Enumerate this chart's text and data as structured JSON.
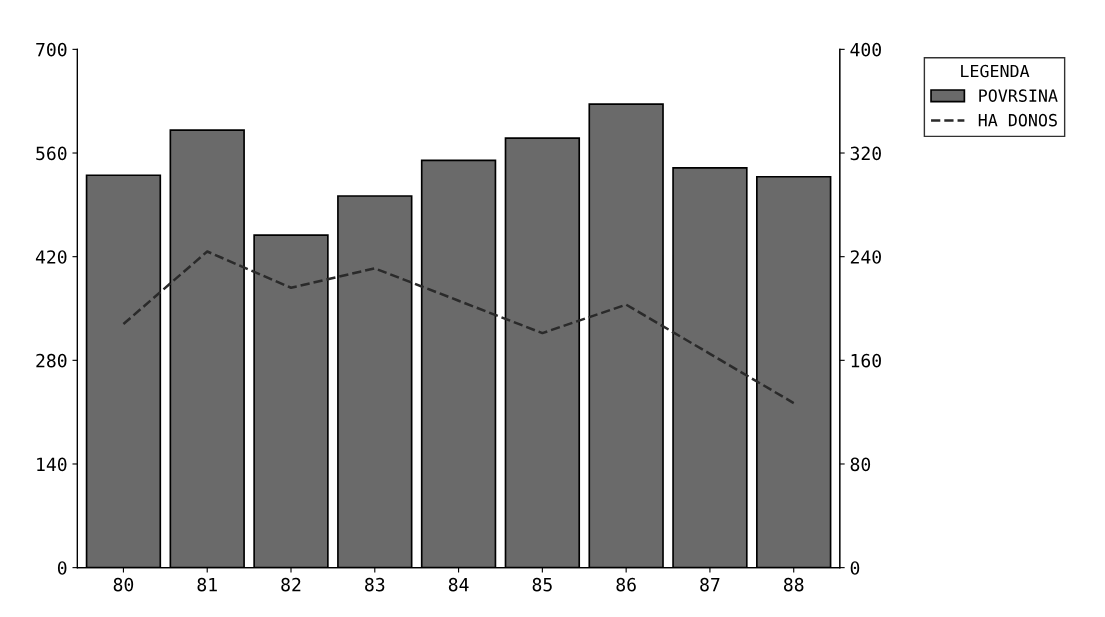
{
  "chart_data": {
    "type": "bar",
    "categories": [
      "80",
      "81",
      "82",
      "83",
      "84",
      "85",
      "86",
      "87",
      "88"
    ],
    "series": [
      {
        "name": "POVRSINA",
        "color": "#6a6a6a",
        "values": [
          530,
          591,
          449,
          502,
          550,
          580,
          626,
          540,
          528
        ]
      },
      {
        "name": "HA DONOS",
        "type": "line",
        "axis": "y2",
        "color": "#2a2a2a",
        "line_style": "dashed",
        "values": [
          188,
          244,
          216,
          231,
          206,
          181,
          203,
          165,
          127
        ]
      }
    ],
    "ylim": [
      0,
      700
    ],
    "yticks": [
      0,
      140,
      280,
      420,
      560,
      700
    ],
    "y2lim": [
      0,
      400
    ],
    "y2ticks": [
      0,
      80,
      160,
      240,
      320,
      400
    ],
    "legend": "top right",
    "legend_title": "LEGENDA",
    "grid": false
  }
}
